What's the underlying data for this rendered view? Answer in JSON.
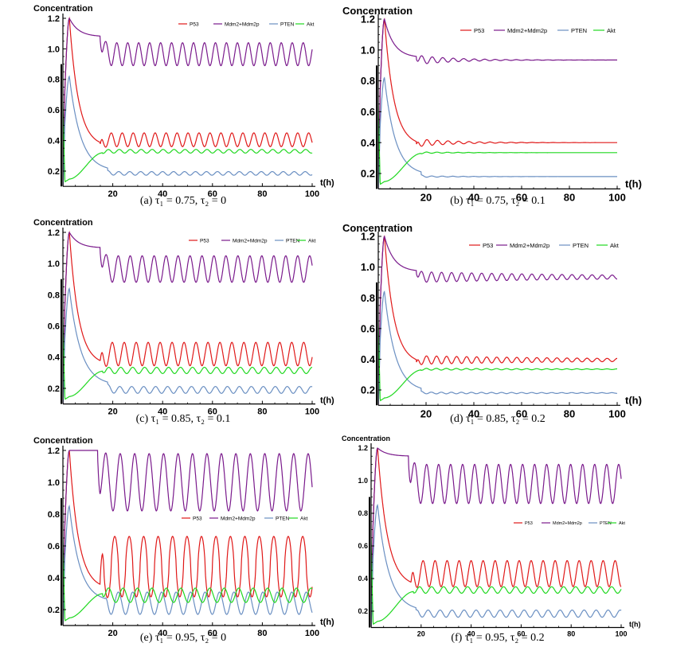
{
  "colors": {
    "P53": "#e01818",
    "Mdm2+Mdm2p": "#7a1a8c",
    "PTEN": "#6a8fc2",
    "Akt": "#20d820",
    "axis": "#000000"
  },
  "chart_data": [
    {
      "id": "a",
      "type": "line",
      "caption": "(a)  τ₁ = 0.75, τ₂ = 0",
      "ylabel": "Concentration",
      "xlabel": "t(h)",
      "xlim": [
        0,
        100
      ],
      "ylim": [
        0.1,
        1.2
      ],
      "xticks": [
        20,
        40,
        60,
        80,
        100
      ],
      "yticks": [
        0.2,
        0.4,
        0.6,
        0.8,
        1.0,
        1.2
      ],
      "ytick_labels": [
        "0.2",
        "0.4",
        "0.6",
        "0.8",
        "1.0",
        "1.2"
      ],
      "legend": [
        "P53",
        "Mdm2+Mdm2p",
        "PTEN",
        "Akt"
      ],
      "series": [
        {
          "name": "P53",
          "rise_peak": 1.2,
          "settle_at": 15,
          "settle_value": 0.36,
          "mean": 0.405,
          "amplitude": 0.045,
          "period": 4.4,
          "phase": 0
        },
        {
          "name": "Mdm2+Mdm2p",
          "rise_peak": 1.2,
          "settle_at": 15,
          "settle_value": 1.08,
          "mean": 0.965,
          "amplitude": 0.075,
          "period": 4.4,
          "phase": 0.5
        },
        {
          "name": "PTEN",
          "rise_peak": 0.82,
          "settle_at": 18,
          "settle_value": 0.2,
          "mean": 0.185,
          "amplitude": 0.012,
          "period": 4.4,
          "phase": 0
        },
        {
          "name": "Akt",
          "start_min": 0.13,
          "settle_at": 16,
          "settle_value": 0.32,
          "mean": 0.33,
          "amplitude": 0.012,
          "period": 4.4,
          "phase": 0.5
        }
      ]
    },
    {
      "id": "b",
      "type": "line",
      "caption": "(b)  τ₁ = 0.75, τ₂ = 0.1",
      "ylabel": "Concentration",
      "xlabel": "t(h)",
      "xlim": [
        0,
        100
      ],
      "ylim": [
        0.1,
        1.2
      ],
      "xticks": [
        20,
        40,
        60,
        80,
        100
      ],
      "yticks": [
        0.2,
        0.4,
        0.6,
        0.8,
        1.0,
        1.2
      ],
      "ytick_labels": [
        "0.2",
        "0.4",
        "0.6",
        "0.8",
        "1.0",
        "1.2"
      ],
      "legend": [
        "P53",
        "Mdm2+Mdm2p",
        "PTEN",
        "Akt"
      ],
      "series": [
        {
          "name": "P53",
          "rise_peak": 1.2,
          "settle_at": 16,
          "settle_value": 0.38,
          "mean": 0.4,
          "amplitude": 0.025,
          "decay": 0.06,
          "period": 4.4,
          "phase": 0
        },
        {
          "name": "Mdm2+Mdm2p",
          "rise_peak": 1.2,
          "settle_at": 16,
          "settle_value": 0.95,
          "mean": 0.935,
          "amplitude": 0.03,
          "decay": 0.06,
          "period": 4.4,
          "phase": 0.5
        },
        {
          "name": "PTEN",
          "rise_peak": 0.82,
          "settle_at": 18,
          "settle_value": 0.19,
          "mean": 0.18,
          "amplitude": 0.005,
          "decay": 0.06,
          "period": 4.4,
          "phase": 0
        },
        {
          "name": "Akt",
          "start_min": 0.13,
          "settle_at": 18,
          "settle_value": 0.33,
          "mean": 0.335,
          "amplitude": 0.005,
          "decay": 0.06,
          "period": 4.4,
          "phase": 0.5
        }
      ]
    },
    {
      "id": "c",
      "type": "line",
      "caption": "(c)  τ₁ = 0.85, τ₂ = 0.1",
      "ylabel": "Concentration",
      "xlabel": "t(h)",
      "xlim": [
        0,
        100
      ],
      "ylim": [
        0.1,
        1.2
      ],
      "xticks": [
        20,
        40,
        60,
        80,
        100
      ],
      "yticks": [
        0.2,
        0.4,
        0.6,
        0.8,
        1.0,
        1.2
      ],
      "ytick_labels": [
        "0.2",
        "0.4",
        "0.6",
        "0.8",
        "1.0",
        "1.2"
      ],
      "legend": [
        "P53",
        "Mdm2+Mdm2p",
        "PTEN",
        "Akt"
      ],
      "series": [
        {
          "name": "P53",
          "rise_peak": 1.2,
          "settle_at": 15,
          "settle_value": 0.35,
          "mean": 0.42,
          "amplitude": 0.075,
          "period": 4.8,
          "phase": 0
        },
        {
          "name": "Mdm2+Mdm2p",
          "rise_peak": 1.2,
          "settle_at": 15,
          "settle_value": 1.1,
          "mean": 0.965,
          "amplitude": 0.085,
          "period": 4.8,
          "phase": 0.5
        },
        {
          "name": "PTEN",
          "rise_peak": 0.84,
          "settle_at": 18,
          "settle_value": 0.22,
          "mean": 0.19,
          "amplitude": 0.022,
          "period": 4.8,
          "phase": 0
        },
        {
          "name": "Akt",
          "start_min": 0.13,
          "settle_at": 16,
          "settle_value": 0.31,
          "mean": 0.315,
          "amplitude": 0.02,
          "period": 4.8,
          "phase": 0.5
        }
      ]
    },
    {
      "id": "d",
      "type": "line",
      "caption": "(d)  τ₁ = 0.85, τ₂ = 0.2",
      "ylabel": "Concentration",
      "xlabel": "t(h)",
      "xlim": [
        0,
        100
      ],
      "ylim": [
        0.1,
        1.2
      ],
      "xticks": [
        20,
        40,
        60,
        80,
        100
      ],
      "yticks": [
        0.2,
        0.4,
        0.6,
        0.8,
        1.0,
        1.2
      ],
      "ytick_labels": [
        "0.2",
        "0.4",
        "0.6",
        "0.8",
        "1.0",
        "1.2"
      ],
      "legend": [
        "P53",
        "Mdm2+Mdm2p",
        "PTEN",
        "Akt"
      ],
      "series": [
        {
          "name": "P53",
          "rise_peak": 1.2,
          "settle_at": 16,
          "settle_value": 0.37,
          "mean": 0.395,
          "amplitude": 0.028,
          "decay": 0.012,
          "period": 4.2,
          "phase": 0
        },
        {
          "name": "Mdm2+Mdm2p",
          "rise_peak": 1.2,
          "settle_at": 16,
          "settle_value": 0.97,
          "mean": 0.935,
          "amplitude": 0.035,
          "decay": 0.012,
          "period": 4.2,
          "phase": 0.5
        },
        {
          "name": "PTEN",
          "rise_peak": 0.84,
          "settle_at": 18,
          "settle_value": 0.19,
          "mean": 0.18,
          "amplitude": 0.006,
          "decay": 0.012,
          "period": 4.2,
          "phase": 0
        },
        {
          "name": "Akt",
          "start_min": 0.13,
          "settle_at": 18,
          "settle_value": 0.33,
          "mean": 0.335,
          "amplitude": 0.006,
          "decay": 0.012,
          "period": 4.2,
          "phase": 0.5
        }
      ]
    },
    {
      "id": "e",
      "type": "line",
      "caption": "(e)  τ₁ = 0.95, τ₂ = 0",
      "ylabel": "Concentration",
      "xlabel": "t(h)",
      "xlim": [
        0,
        100
      ],
      "ylim": [
        0.1,
        1.2
      ],
      "xticks": [
        20,
        40,
        60,
        80,
        100
      ],
      "yticks": [
        0.2,
        0.4,
        0.6,
        0.8,
        1.0,
        1.2
      ],
      "ytick_labels": [
        "0.2",
        "0.4",
        "0.6",
        "0.8",
        "1.0",
        "1.2"
      ],
      "legend": [
        "P53",
        "Mdm2+Mdm2p",
        "PTEN",
        "Akt"
      ],
      "series": [
        {
          "name": "P53",
          "rise_peak": 1.2,
          "settle_at": 15,
          "settle_value": 0.33,
          "mean": 0.47,
          "amplitude": 0.19,
          "period": 5.8,
          "phase": 0,
          "sharp": true
        },
        {
          "name": "Mdm2+Mdm2p",
          "rise_peak": 1.2,
          "settle_at": 14,
          "settle_value": 1.2,
          "mean": 1.0,
          "amplitude": 0.18,
          "period": 5.8,
          "phase": 0.45
        },
        {
          "name": "PTEN",
          "rise_peak": 0.85,
          "settle_at": 17,
          "settle_value": 0.25,
          "mean": 0.24,
          "amplitude": 0.07,
          "period": 5.8,
          "phase": 0.1
        },
        {
          "name": "Akt",
          "start_min": 0.13,
          "settle_at": 16,
          "settle_value": 0.3,
          "mean": 0.29,
          "amplitude": 0.045,
          "period": 5.8,
          "phase": 0.6
        }
      ]
    },
    {
      "id": "f",
      "type": "line",
      "caption": "(f)  τ₁ = 0.95, τ₂ = 0.2",
      "ylabel": "Concentration",
      "xlabel": "t(h)",
      "xlim": [
        0,
        100
      ],
      "ylim": [
        0.1,
        1.2
      ],
      "xticks": [
        20,
        40,
        60,
        80,
        100
      ],
      "yticks": [
        0.2,
        0.4,
        0.6,
        0.8,
        1.0,
        1.2
      ],
      "ytick_labels": [
        "0.2",
        "0.4",
        "0.6",
        "0.8",
        "1.0",
        "1.2"
      ],
      "legend": [
        "P53",
        "Mdm2+Mdm2p",
        "PTEN",
        "Akt"
      ],
      "series": [
        {
          "name": "P53",
          "rise_peak": 1.2,
          "settle_at": 16,
          "settle_value": 0.35,
          "mean": 0.43,
          "amplitude": 0.08,
          "period": 4.8,
          "phase": 0
        },
        {
          "name": "Mdm2+Mdm2p",
          "rise_peak": 1.2,
          "settle_at": 15,
          "settle_value": 1.15,
          "mean": 0.98,
          "amplitude": 0.12,
          "period": 4.8,
          "phase": 0.5
        },
        {
          "name": "PTEN",
          "rise_peak": 0.85,
          "settle_at": 18,
          "settle_value": 0.2,
          "mean": 0.185,
          "amplitude": 0.022,
          "period": 4.8,
          "phase": 0
        },
        {
          "name": "Akt",
          "start_min": 0.12,
          "settle_at": 17,
          "settle_value": 0.32,
          "mean": 0.33,
          "amplitude": 0.02,
          "period": 4.8,
          "phase": 0.5
        }
      ]
    }
  ]
}
